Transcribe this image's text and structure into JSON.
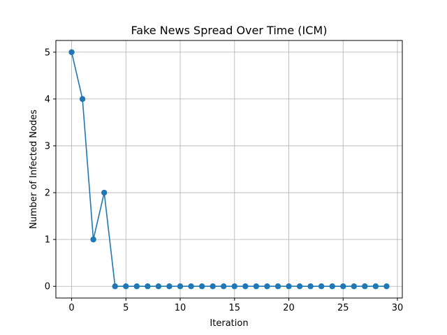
{
  "chart_data": {
    "type": "line",
    "title": "Fake News Spread Over Time (ICM)",
    "xlabel": "Iteration",
    "ylabel": "Number of Infected Nodes",
    "xlim": [
      -1.45,
      30.45
    ],
    "ylim": [
      -0.25,
      5.25
    ],
    "xticks": [
      0,
      5,
      10,
      15,
      20,
      25,
      30
    ],
    "yticks": [
      0,
      1,
      2,
      3,
      4,
      5
    ],
    "grid": true,
    "marker": "circle",
    "color": "#1f77b4",
    "x": [
      0,
      1,
      2,
      3,
      4,
      5,
      6,
      7,
      8,
      9,
      10,
      11,
      12,
      13,
      14,
      15,
      16,
      17,
      18,
      19,
      20,
      21,
      22,
      23,
      24,
      25,
      26,
      27,
      28,
      29
    ],
    "values": [
      5,
      4,
      1,
      2,
      0,
      0,
      0,
      0,
      0,
      0,
      0,
      0,
      0,
      0,
      0,
      0,
      0,
      0,
      0,
      0,
      0,
      0,
      0,
      0,
      0,
      0,
      0,
      0,
      0,
      0
    ]
  }
}
